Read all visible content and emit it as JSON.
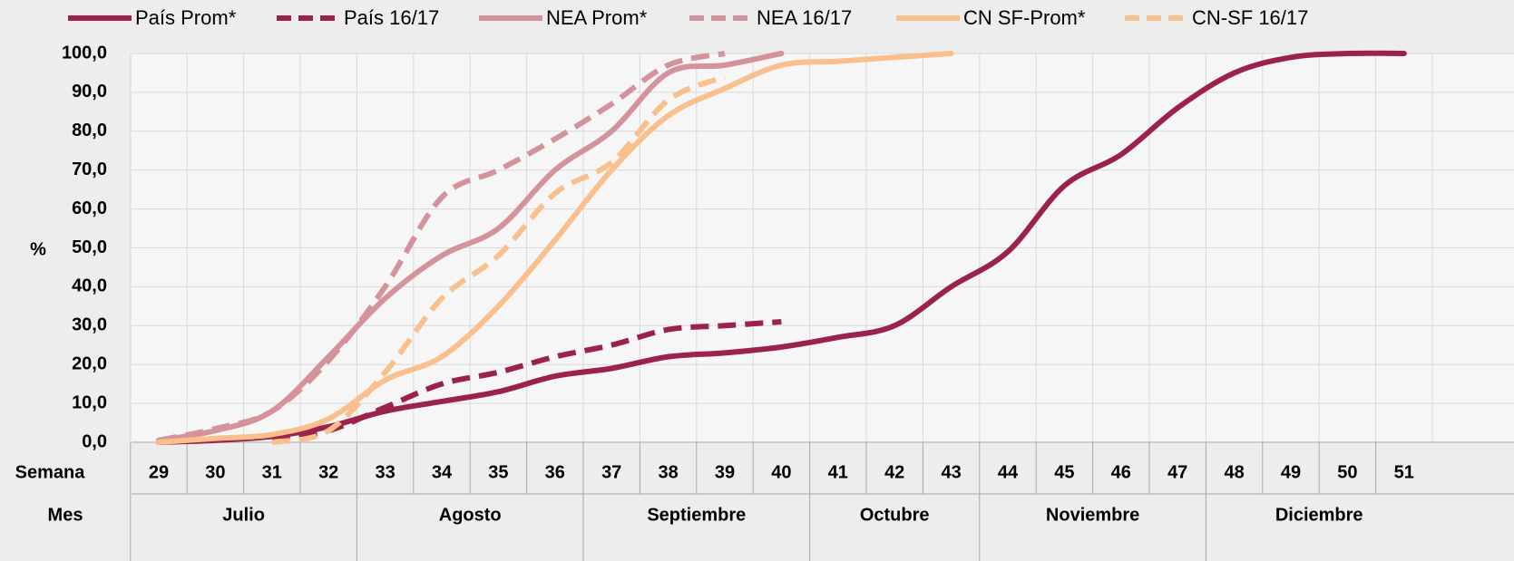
{
  "chart_data": {
    "type": "line",
    "y_label": "%",
    "week_row_label": "Semana",
    "month_row_label": "Mes",
    "categories": [
      "29",
      "30",
      "31",
      "32",
      "33",
      "34",
      "35",
      "36",
      "37",
      "38",
      "39",
      "40",
      "41",
      "42",
      "43",
      "44",
      "45",
      "46",
      "47",
      "48",
      "49",
      "50",
      "51"
    ],
    "months": [
      "Julio",
      "Agosto",
      "Septiembre",
      "Octubre",
      "Noviembre",
      "Diciembre"
    ],
    "month_spans": [
      4,
      4,
      4,
      3,
      4,
      4
    ],
    "ylim": [
      0,
      100
    ],
    "yticks": [
      {
        "value": 0,
        "label": "0,0"
      },
      {
        "value": 10,
        "label": "10,0"
      },
      {
        "value": 20,
        "label": "20,0"
      },
      {
        "value": 30,
        "label": "30,0"
      },
      {
        "value": 40,
        "label": "40,0"
      },
      {
        "value": 50,
        "label": "50,0"
      },
      {
        "value": 60,
        "label": "60,0"
      },
      {
        "value": 70,
        "label": "70,0"
      },
      {
        "value": 80,
        "label": "80,0"
      },
      {
        "value": 90,
        "label": "90,0"
      },
      {
        "value": 100,
        "label": "100,0"
      }
    ],
    "grid": true,
    "legend": "top",
    "series": [
      {
        "name": "País Prom*",
        "color": "#9b2348",
        "dashed": false,
        "values": [
          0,
          0.5,
          1.5,
          4,
          8,
          10.5,
          13,
          17,
          19,
          22,
          23,
          24.5,
          27,
          30,
          40,
          49,
          66,
          74,
          86,
          95,
          99,
          100,
          100
        ]
      },
      {
        "name": "País 16/17",
        "color": "#9b2348",
        "dashed": true,
        "values": [
          null,
          null,
          1,
          3,
          9,
          15,
          18,
          22,
          25,
          29,
          30,
          31,
          null,
          null,
          null,
          null,
          null,
          null,
          null,
          null,
          null,
          null,
          null
        ]
      },
      {
        "name": "NEA Prom*",
        "color": "#d4939a",
        "dashed": false,
        "values": [
          0.5,
          3,
          8,
          22,
          37,
          48,
          55,
          70,
          80,
          95,
          97,
          100,
          null,
          null,
          null,
          null,
          null,
          null,
          null,
          null,
          null,
          null,
          null
        ]
      },
      {
        "name": "NEA 16/17",
        "color": "#d4939a",
        "dashed": true,
        "values": [
          0.5,
          3.5,
          8,
          21,
          40,
          63,
          70,
          78,
          87,
          97,
          100,
          null,
          null,
          null,
          null,
          null,
          null,
          null,
          null,
          null,
          null,
          null,
          null
        ]
      },
      {
        "name": "CN SF-Prom*",
        "color": "#f9c08e",
        "dashed": false,
        "values": [
          0,
          1,
          2,
          6,
          16,
          22,
          35,
          52,
          70,
          84,
          91,
          97,
          98,
          99,
          100,
          null,
          null,
          null,
          null,
          null,
          null,
          null,
          null
        ]
      },
      {
        "name": "CN-SF 16/17",
        "color": "#f9c08e",
        "dashed": true,
        "values": [
          null,
          null,
          0,
          3,
          18,
          37,
          48,
          64,
          72,
          88,
          94,
          null,
          null,
          null,
          null,
          null,
          null,
          null,
          null,
          null,
          null,
          null,
          null
        ]
      }
    ]
  }
}
